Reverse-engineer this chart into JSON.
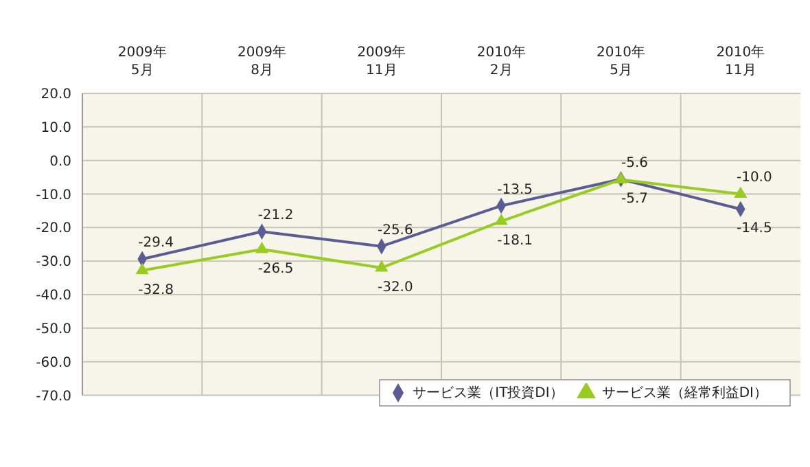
{
  "chart_data": {
    "type": "line",
    "categories": [
      "2009年\n5月",
      "2009年\n8月",
      "2009年\n11月",
      "2010年\n2月",
      "2010年\n5月",
      "2010年\n11月"
    ],
    "series": [
      {
        "name": "サービス業（IT投資DI）",
        "color": "#5c5c94",
        "marker": "diamond",
        "values": [
          -29.4,
          -21.2,
          -25.6,
          -13.5,
          -5.6,
          -14.5
        ],
        "value_labels": [
          "-29.4",
          "-21.2",
          "-25.6",
          "-13.5",
          "-5.6",
          "-14.5"
        ]
      },
      {
        "name": "サービス業（経常利益DI）",
        "color": "#99cc22",
        "marker": "triangle",
        "values": [
          -32.8,
          -26.5,
          -32.0,
          -18.1,
          -5.7,
          -10.0
        ],
        "value_labels": [
          "-32.8",
          "-26.5",
          "-32.0",
          "-18.1",
          "-5.7",
          "-10.0"
        ]
      }
    ],
    "ylim": [
      -70,
      20
    ],
    "yticks": [
      {
        "value": -70,
        "label": "-70.0"
      },
      {
        "value": -60,
        "label": "-60.0"
      },
      {
        "value": -50,
        "label": "-50.0"
      },
      {
        "value": -40,
        "label": "-40.0"
      },
      {
        "value": -30,
        "label": "-30.0"
      },
      {
        "value": -20,
        "label": "-20.0"
      },
      {
        "value": -10,
        "label": "-10.0"
      },
      {
        "value": 0,
        "label": "0.0"
      },
      {
        "value": 10,
        "label": "10.0"
      },
      {
        "value": 20,
        "label": "20.0"
      }
    ],
    "grid": true,
    "legend": "bottom right",
    "line_style": "solid"
  }
}
